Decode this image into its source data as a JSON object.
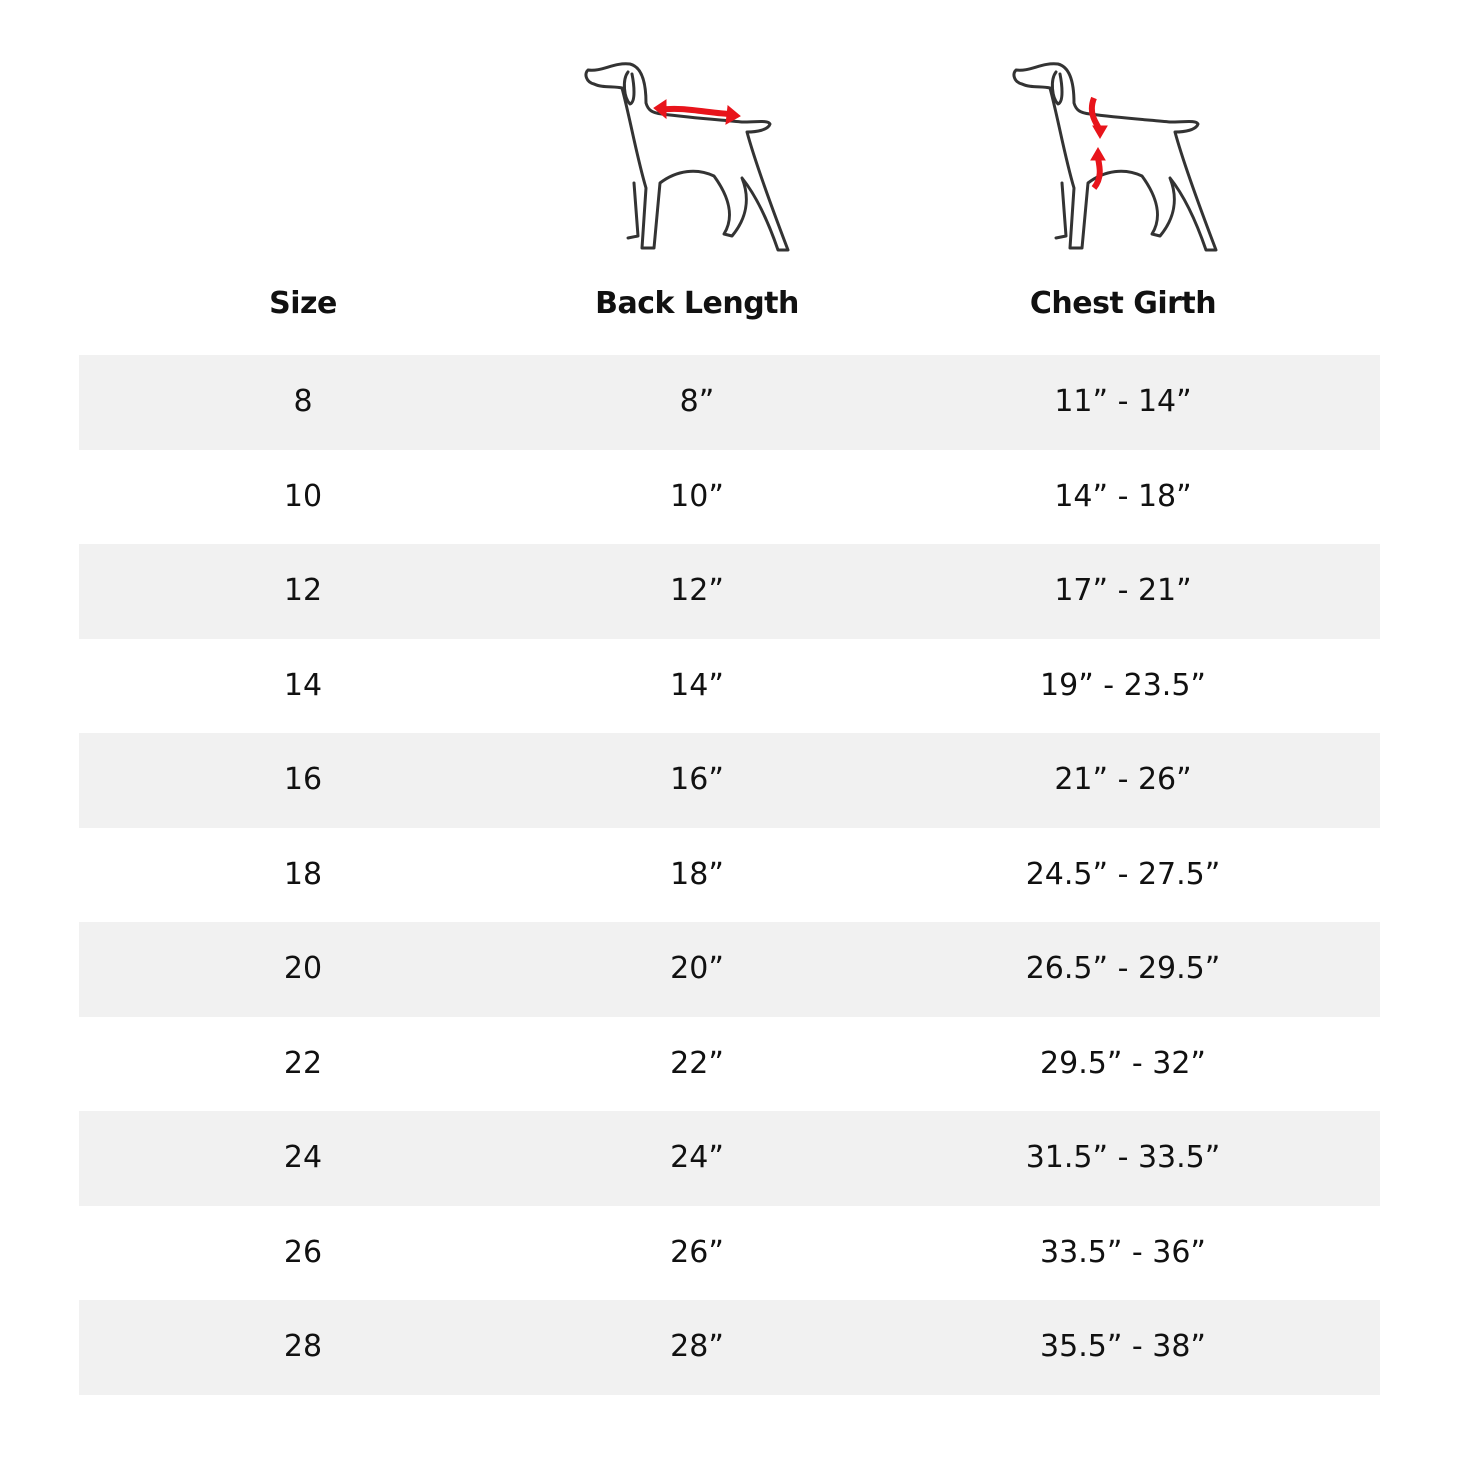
{
  "headers": {
    "size": "Size",
    "back_length": "Back Length",
    "chest_girth": "Chest Girth"
  },
  "icons": {
    "back_length": "dog-back-length-diagram-icon",
    "chest_girth": "dog-chest-girth-diagram-icon"
  },
  "colors": {
    "row_alt": "#f1f1f1",
    "arrow": "#e8141b",
    "outline": "#333333"
  },
  "rows": [
    {
      "size": "8",
      "back_length": "8”",
      "chest_girth": "11” - 14”"
    },
    {
      "size": "10",
      "back_length": "10”",
      "chest_girth": "14” - 18”"
    },
    {
      "size": "12",
      "back_length": "12”",
      "chest_girth": "17” - 21”"
    },
    {
      "size": "14",
      "back_length": "14”",
      "chest_girth": "19” - 23.5”"
    },
    {
      "size": "16",
      "back_length": "16”",
      "chest_girth": "21” - 26”"
    },
    {
      "size": "18",
      "back_length": "18”",
      "chest_girth": "24.5” - 27.5”"
    },
    {
      "size": "20",
      "back_length": "20”",
      "chest_girth": "26.5” - 29.5”"
    },
    {
      "size": "22",
      "back_length": "22”",
      "chest_girth": "29.5” - 32”"
    },
    {
      "size": "24",
      "back_length": "24”",
      "chest_girth": "31.5” - 33.5”"
    },
    {
      "size": "26",
      "back_length": "26”",
      "chest_girth": "33.5” - 36”"
    },
    {
      "size": "28",
      "back_length": "28”",
      "chest_girth": "35.5” - 38”"
    }
  ]
}
